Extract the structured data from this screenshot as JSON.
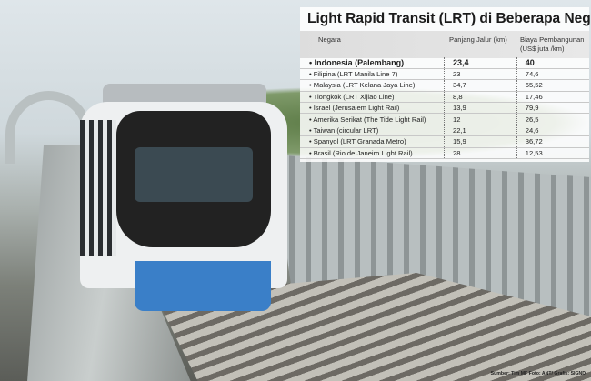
{
  "infographic": {
    "title": "Light Rapid Transit (LRT) di Beberapa Negara",
    "headers": [
      "Negara",
      "Panjang Jalur (km)",
      "Biaya Pembangunan (US$ juta /km)"
    ],
    "rows": [
      {
        "country": "Indonesia (Palembang)",
        "length": "23,4",
        "cost": "40"
      },
      {
        "country": "Filipina (LRT Manila Line 7)",
        "length": "23",
        "cost": "74,6"
      },
      {
        "country": "Malaysia (LRT Kelana Jaya Line)",
        "length": "34,7",
        "cost": "65,52"
      },
      {
        "country": "Tiongkok (LRT Xijiao Line)",
        "length": "8,8",
        "cost": "17,46"
      },
      {
        "country": "Israel (Jerusalem Light Rail)",
        "length": "13,9",
        "cost": "79,9"
      },
      {
        "country": "Amerika Serikat (The Tide Light Rail)",
        "length": "12",
        "cost": "26,5"
      },
      {
        "country": "Taiwan (circular LRT)",
        "length": "22,1",
        "cost": "24,6"
      },
      {
        "country": "Spanyol (LRT Granada Metro)",
        "length": "15,9",
        "cost": "36,72"
      },
      {
        "country": "Brasil (Rio de Janeiro Light Rail)",
        "length": "28",
        "cost": "12,53"
      }
    ],
    "source": "Sumber: Tim MF Foto: ANT/ Grafis: SIGND"
  }
}
